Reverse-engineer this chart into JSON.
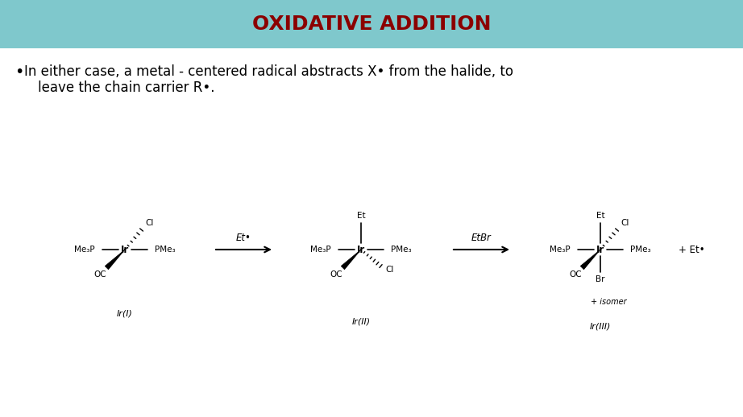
{
  "title": "OXIDATIVE ADDITION",
  "title_color": "#8B0000",
  "header_bg_color": "#7FC8CC",
  "slide_bg_color": "#FFFFFF",
  "bullet_text_line1": "In either case, a metal - centered radical abstracts X• from the halide, to",
  "bullet_text_line2": "leave the chain carrier R•.",
  "bullet_color": "#000000",
  "font_size_title": 18,
  "font_size_bullet": 12,
  "font_size_chem": 7.5
}
